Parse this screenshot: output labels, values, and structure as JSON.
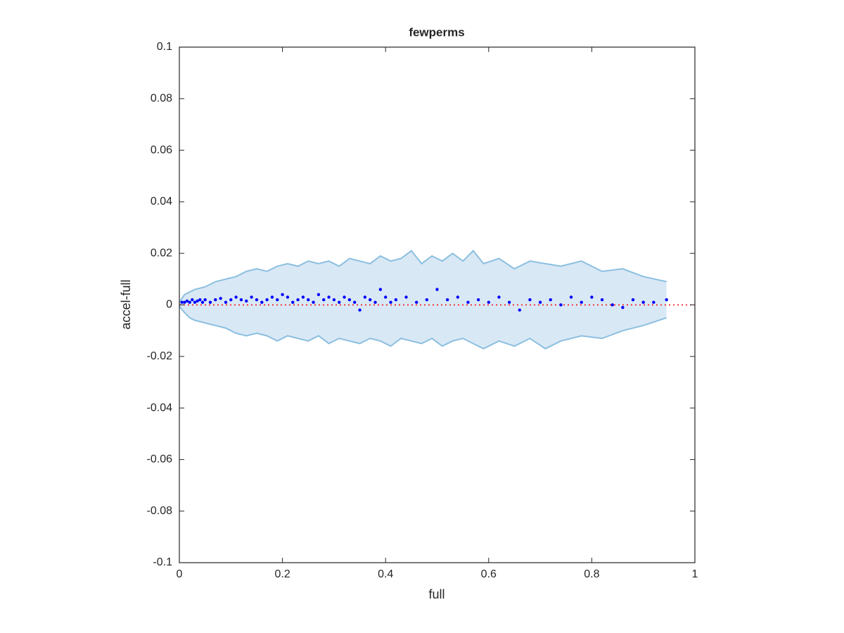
{
  "chart_data": {
    "type": "scatter",
    "title": "fewperms",
    "xlabel": "full",
    "ylabel": "accel-full",
    "xlim": [
      0,
      1
    ],
    "ylim": [
      -0.1,
      0.1
    ],
    "xticks": [
      0,
      0.2,
      0.4,
      0.6,
      0.8,
      1
    ],
    "yticks": [
      -0.1,
      -0.08,
      -0.06,
      -0.04,
      -0.02,
      0,
      0.02,
      0.04,
      0.06,
      0.08,
      0.1
    ],
    "color": "#0000ff",
    "x": [
      0.005,
      0.01,
      0.015,
      0.02,
      0.025,
      0.03,
      0.035,
      0.04,
      0.045,
      0.05,
      0.06,
      0.07,
      0.08,
      0.09,
      0.1,
      0.11,
      0.12,
      0.13,
      0.14,
      0.15,
      0.16,
      0.17,
      0.18,
      0.19,
      0.2,
      0.21,
      0.22,
      0.23,
      0.24,
      0.25,
      0.26,
      0.27,
      0.28,
      0.29,
      0.3,
      0.31,
      0.32,
      0.33,
      0.34,
      0.35,
      0.36,
      0.37,
      0.38,
      0.39,
      0.4,
      0.41,
      0.42,
      0.44,
      0.46,
      0.48,
      0.5,
      0.52,
      0.54,
      0.56,
      0.58,
      0.6,
      0.62,
      0.64,
      0.66,
      0.68,
      0.7,
      0.72,
      0.74,
      0.76,
      0.78,
      0.8,
      0.82,
      0.84,
      0.86,
      0.88,
      0.9,
      0.92,
      0.945
    ],
    "values": [
      0.001,
      0.001,
      0.0015,
      0.001,
      0.002,
      0.001,
      0.0015,
      0.002,
      0.001,
      0.002,
      0.001,
      0.002,
      0.0025,
      0.001,
      0.002,
      0.003,
      0.002,
      0.0015,
      0.003,
      0.002,
      0.001,
      0.002,
      0.003,
      0.002,
      0.004,
      0.003,
      0.001,
      0.002,
      0.003,
      0.002,
      0.001,
      0.004,
      0.002,
      0.003,
      0.002,
      0.001,
      0.003,
      0.002,
      0.001,
      -0.002,
      0.003,
      0.002,
      0.001,
      0.006,
      0.003,
      0.001,
      0.002,
      0.003,
      0.001,
      0.002,
      0.006,
      0.002,
      0.003,
      0.001,
      0.002,
      0.001,
      0.003,
      0.001,
      -0.002,
      0.002,
      0.001,
      0.002,
      0.0,
      0.003,
      0.001,
      0.003,
      0.002,
      0.0,
      -0.001,
      0.002,
      0.001,
      0.001,
      0.002
    ],
    "band": {
      "fill_color": "#d9e8f5",
      "edge_color": "#8bbfe0",
      "x": [
        0,
        0.01,
        0.02,
        0.03,
        0.05,
        0.07,
        0.09,
        0.11,
        0.13,
        0.15,
        0.17,
        0.19,
        0.21,
        0.23,
        0.25,
        0.27,
        0.29,
        0.31,
        0.33,
        0.35,
        0.37,
        0.39,
        0.41,
        0.43,
        0.45,
        0.47,
        0.49,
        0.51,
        0.53,
        0.55,
        0.57,
        0.59,
        0.62,
        0.65,
        0.68,
        0.71,
        0.74,
        0.78,
        0.82,
        0.86,
        0.9,
        0.945
      ],
      "upper": [
        0.001,
        0.004,
        0.005,
        0.006,
        0.007,
        0.009,
        0.01,
        0.011,
        0.013,
        0.014,
        0.013,
        0.015,
        0.016,
        0.015,
        0.017,
        0.016,
        0.017,
        0.015,
        0.018,
        0.017,
        0.016,
        0.019,
        0.017,
        0.018,
        0.021,
        0.016,
        0.019,
        0.017,
        0.02,
        0.017,
        0.021,
        0.016,
        0.018,
        0.014,
        0.017,
        0.016,
        0.015,
        0.017,
        0.013,
        0.014,
        0.011,
        0.009
      ],
      "lower": [
        -0.0005,
        -0.003,
        -0.005,
        -0.006,
        -0.007,
        -0.008,
        -0.009,
        -0.011,
        -0.012,
        -0.011,
        -0.012,
        -0.014,
        -0.012,
        -0.013,
        -0.014,
        -0.012,
        -0.015,
        -0.013,
        -0.014,
        -0.015,
        -0.013,
        -0.014,
        -0.016,
        -0.013,
        -0.014,
        -0.015,
        -0.013,
        -0.016,
        -0.014,
        -0.013,
        -0.015,
        -0.017,
        -0.014,
        -0.016,
        -0.013,
        -0.017,
        -0.014,
        -0.012,
        -0.013,
        -0.01,
        -0.008,
        -0.005
      ]
    },
    "reference_line": {
      "y": 0,
      "color": "#ff0000"
    }
  }
}
